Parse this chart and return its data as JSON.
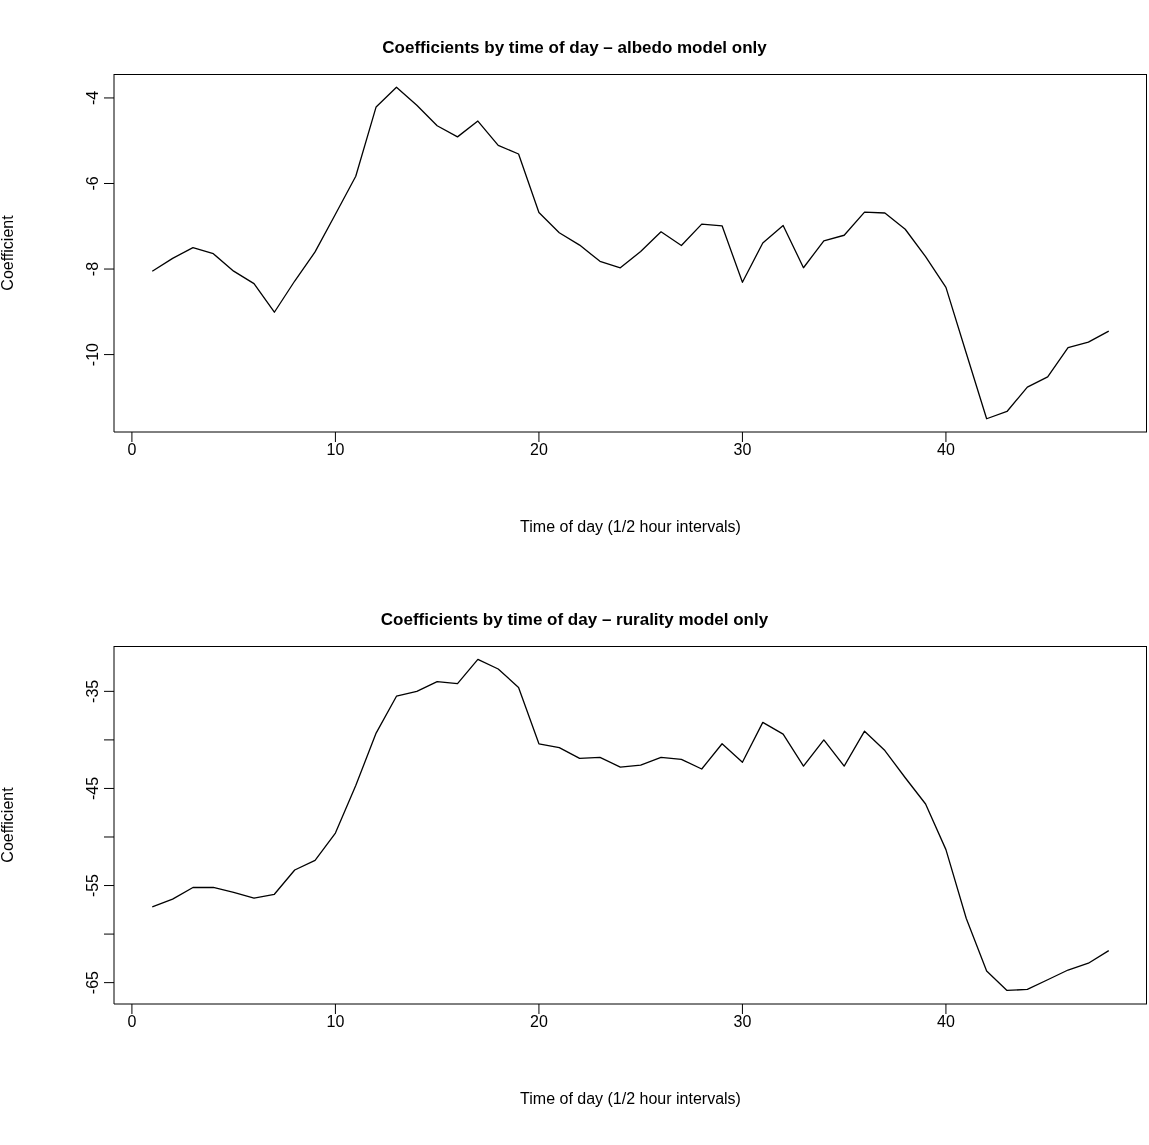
{
  "chart_data": [
    {
      "type": "line",
      "title": "Coefficients by time of day – albedo model only",
      "xlabel": "Time of day (1/2 hour intervals)",
      "ylabel": "Coefficient",
      "marker": "none",
      "line_style": "solid",
      "grid": false,
      "x": [
        1,
        2,
        3,
        4,
        5,
        6,
        7,
        8,
        9,
        10,
        11,
        12,
        13,
        14,
        15,
        16,
        17,
        18,
        19,
        20,
        21,
        22,
        23,
        24,
        25,
        26,
        27,
        28,
        29,
        30,
        31,
        32,
        33,
        34,
        35,
        36,
        37,
        38,
        39,
        40,
        41,
        42,
        43,
        44,
        45,
        46,
        47,
        48
      ],
      "series": [
        {
          "color": "#000000",
          "values": [
            -8.05,
            -7.75,
            -7.5,
            -7.64,
            -8.05,
            -8.34,
            -9.01,
            -8.28,
            -7.6,
            -6.72,
            -5.83,
            -4.21,
            -3.75,
            -4.17,
            -4.65,
            -4.91,
            -4.54,
            -5.11,
            -5.31,
            -6.68,
            -7.15,
            -7.44,
            -7.82,
            -7.97,
            -7.59,
            -7.13,
            -7.45,
            -6.95,
            -6.99,
            -8.31,
            -7.39,
            -6.98,
            -7.97,
            -7.34,
            -7.21,
            -6.67,
            -6.69,
            -7.07,
            -7.71,
            -8.43,
            -9.97,
            -11.5,
            -11.33,
            -10.76,
            -10.52,
            -9.84,
            -9.71,
            -9.45
          ]
        }
      ],
      "xlim": [
        -0.88,
        49.88
      ],
      "xticks": [
        0,
        10,
        20,
        30,
        40
      ],
      "ylim": [
        -11.81,
        -3.44
      ],
      "yticks": [
        -10,
        -8,
        -6,
        -4
      ]
    },
    {
      "type": "line",
      "title": "Coefficients by time of day – rurality model only",
      "xlabel": "Time of day (1/2 hour intervals)",
      "ylabel": "Coefficient",
      "marker": "none",
      "line_style": "solid",
      "grid": false,
      "x": [
        1,
        2,
        3,
        4,
        5,
        6,
        7,
        8,
        9,
        10,
        11,
        12,
        13,
        14,
        15,
        16,
        17,
        18,
        19,
        20,
        21,
        22,
        23,
        24,
        25,
        26,
        27,
        28,
        29,
        30,
        31,
        32,
        33,
        34,
        35,
        36,
        37,
        38,
        39,
        40,
        41,
        42,
        43,
        44,
        45,
        46,
        47,
        48
      ],
      "series": [
        {
          "color": "#000000",
          "values": [
            -57.2,
            -56.4,
            -55.2,
            -55.2,
            -55.7,
            -56.3,
            -55.9,
            -53.4,
            -52.4,
            -49.6,
            -44.7,
            -39.3,
            -35.5,
            -35.0,
            -34.0,
            -34.2,
            -31.7,
            -32.7,
            -34.6,
            -40.4,
            -40.8,
            -41.9,
            -41.8,
            -42.8,
            -42.6,
            -41.8,
            -42.0,
            -43.0,
            -40.4,
            -42.3,
            -38.2,
            -39.4,
            -42.7,
            -40.0,
            -42.7,
            -39.1,
            -41.1,
            -43.9,
            -46.6,
            -51.3,
            -58.4,
            -63.8,
            -65.8,
            -65.7,
            -64.7,
            -63.7,
            -63.0,
            -61.7
          ]
        }
      ],
      "xlim": [
        -0.88,
        49.88
      ],
      "xticks": [
        0,
        10,
        20,
        30,
        40
      ],
      "ylim": [
        -67.2,
        -30.33
      ],
      "yticks": [
        -65,
        {
          "value": -60,
          "label": null
        },
        -55,
        {
          "value": -50,
          "label": null
        },
        -45,
        {
          "value": -40,
          "label": null
        },
        -35
      ]
    }
  ]
}
